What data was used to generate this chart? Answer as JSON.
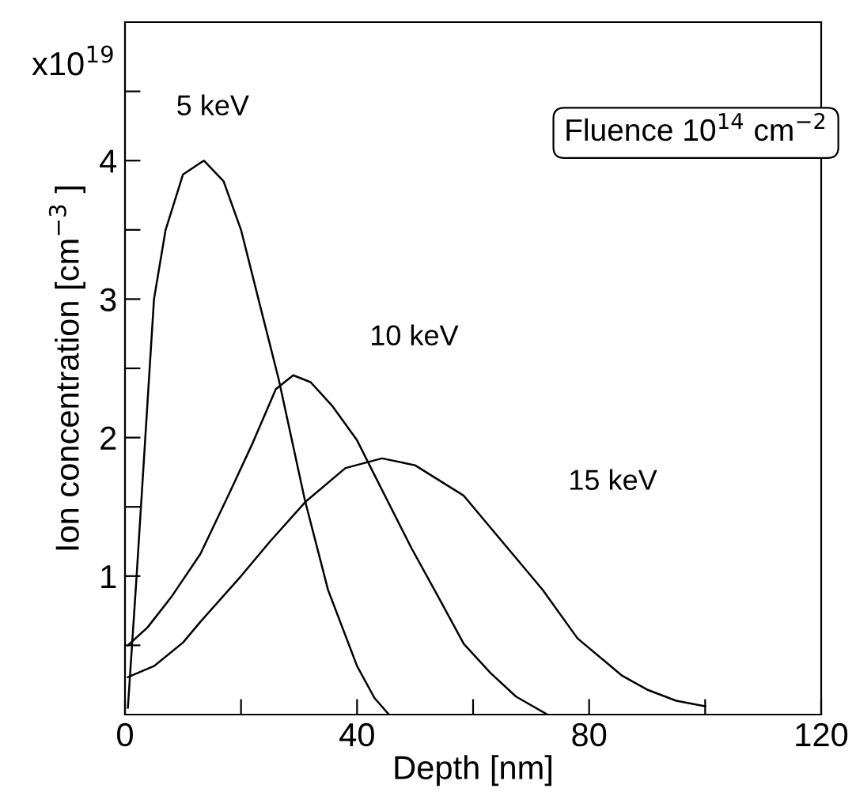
{
  "chart_data": {
    "type": "line",
    "xlabel": "Depth [nm]",
    "ylabel": "Ion concentration [cm$^{−3}$ ]",
    "xlim": [
      0,
      120
    ],
    "ylim": [
      0,
      5
    ],
    "xticks": [
      0,
      {
        "value": 20,
        "label": null
      },
      40,
      {
        "value": 60,
        "label": null
      },
      80,
      {
        "value": 100,
        "label": null
      },
      120
    ],
    "yticks": [
      {
        "value": 0.5,
        "label": null
      },
      1,
      {
        "value": 1.5,
        "label": null
      },
      2,
      {
        "value": 2.5,
        "label": null
      },
      3,
      {
        "value": 3.5,
        "label": null
      },
      4,
      {
        "value": 4.5,
        "label": null
      }
    ],
    "grid": false,
    "marker": "none",
    "line_style": "solid",
    "series": [
      {
        "name": "5 keV",
        "color": "#000000",
        "x": [
          0.5,
          2,
          3.5,
          5,
          7,
          10,
          13.6,
          17,
          20,
          23,
          26.5,
          31,
          35,
          40,
          43,
          45.5
        ],
        "values": [
          0.05,
          1.0,
          2.0,
          3.0,
          3.5,
          3.9,
          4.0,
          3.85,
          3.5,
          3.0,
          2.42,
          1.55,
          0.9,
          0.35,
          0.12,
          0
        ]
      },
      {
        "name": "10 keV",
        "color": "#000000",
        "x": [
          0.5,
          3.9,
          8,
          13,
          18,
          22,
          26,
          29,
          32,
          35.7,
          40,
          43,
          49.4,
          54,
          58.4,
          63,
          67.4,
          72.8
        ],
        "values": [
          0.5,
          0.63,
          0.85,
          1.16,
          1.6,
          1.96,
          2.35,
          2.45,
          2.4,
          2.23,
          1.98,
          1.73,
          1.2,
          0.85,
          0.51,
          0.3,
          0.13,
          0
        ]
      },
      {
        "name": "15 keV",
        "color": "#000000",
        "x": [
          0.5,
          5,
          10,
          13,
          20,
          25,
          31.2,
          38,
          44.3,
          50,
          58.4,
          65,
          72,
          78,
          85.7,
          90,
          95,
          100
        ],
        "values": [
          0.27,
          0.35,
          0.52,
          0.67,
          1.0,
          1.25,
          1.54,
          1.78,
          1.85,
          1.8,
          1.58,
          1.25,
          0.9,
          0.55,
          0.28,
          0.18,
          0.1,
          0.06
        ]
      }
    ],
    "annotations": [
      "Fluence 10$^{14}$ cm$^{−2}$",
      "x10$^{19}$"
    ]
  }
}
